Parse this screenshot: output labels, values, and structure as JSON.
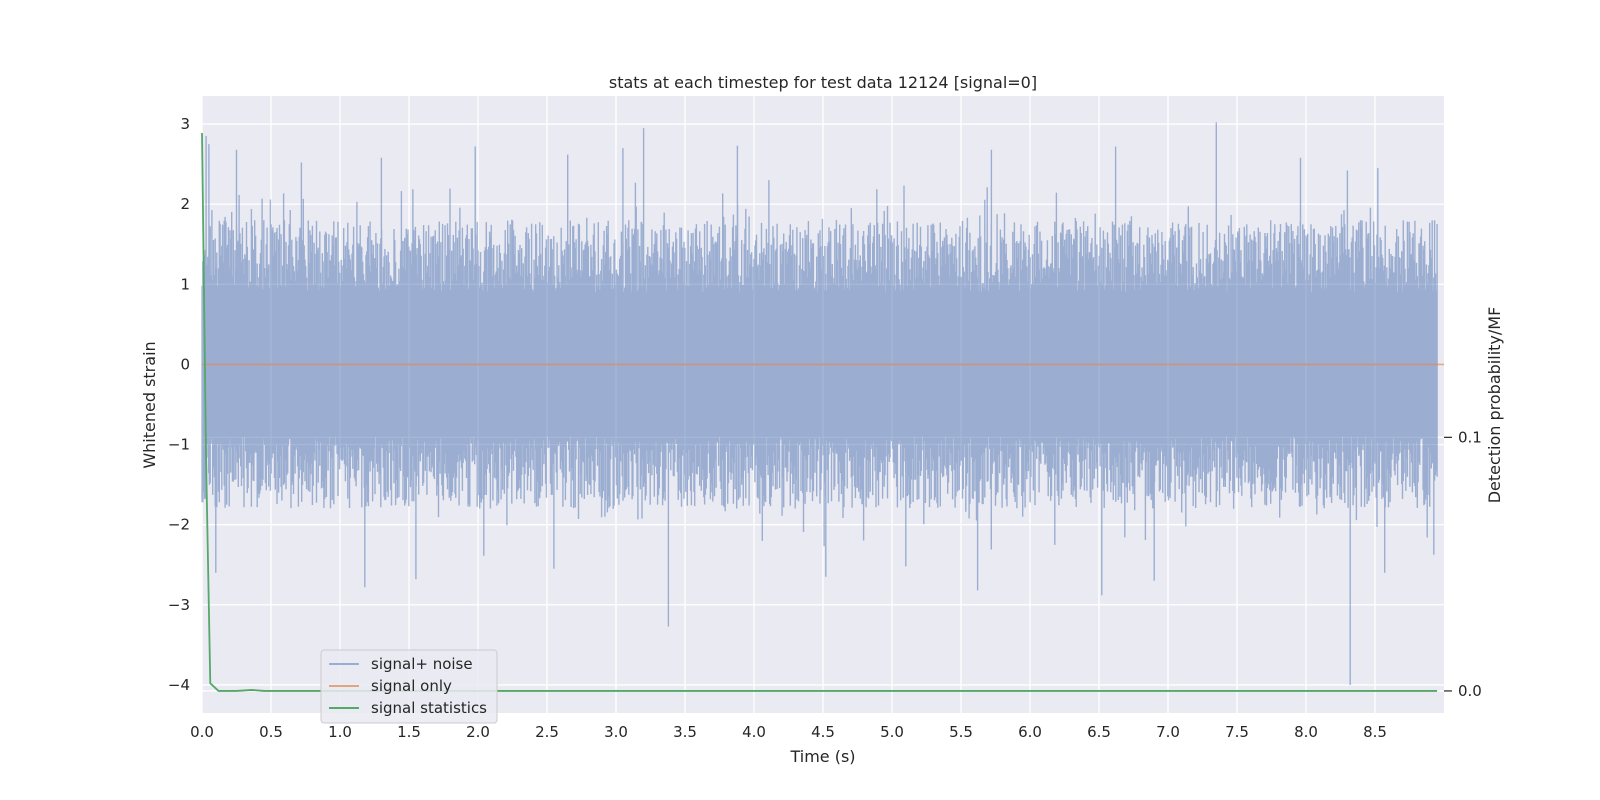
{
  "chart_data": {
    "type": "line",
    "title": "stats at each timestep for test data 12124 [signal=0]",
    "xlabel": "Time (s)",
    "ylabel": "Whitened strain",
    "y2label": "Detection probability/MF",
    "xlim": [
      0.0,
      9.0
    ],
    "ylim": [
      -4.35,
      3.35
    ],
    "y2lim": [
      -0.0087,
      0.2346
    ],
    "x_ticks": [
      0.0,
      0.5,
      1.0,
      1.5,
      2.0,
      2.5,
      3.0,
      3.5,
      4.0,
      4.5,
      5.0,
      5.5,
      6.0,
      6.5,
      7.0,
      7.5,
      8.0,
      8.5
    ],
    "x_tick_labels": [
      "0.0",
      "0.5",
      "1.0",
      "1.5",
      "2.0",
      "2.5",
      "3.0",
      "3.5",
      "4.0",
      "4.5",
      "5.0",
      "5.5",
      "6.0",
      "6.5",
      "7.0",
      "7.5",
      "8.0",
      "8.5"
    ],
    "y_ticks": [
      -4,
      -3,
      -2,
      -1,
      0,
      1,
      2,
      3
    ],
    "y_tick_labels": [
      "−4",
      "−3",
      "−2",
      "−1",
      "0",
      "1",
      "2",
      "3"
    ],
    "y2_ticks": [
      0.0,
      0.1
    ],
    "y2_tick_labels": [
      "0.0",
      "0.1"
    ],
    "grid": true,
    "legend_position": "lower-left",
    "series": [
      {
        "name": "signal+ noise",
        "axis": "left",
        "color": "#4c72b0",
        "style": "dense noise, roughly ±1.5 whitened strain",
        "peaks": {
          "x": [
            0.03,
            0.05,
            0.25,
            0.72,
            1.3,
            1.98,
            2.65,
            3.05,
            3.2,
            3.88,
            5.72,
            6.62,
            7.35,
            7.96,
            8.3,
            8.52
          ],
          "y": [
            2.85,
            2.75,
            2.68,
            2.52,
            2.58,
            2.72,
            2.62,
            2.7,
            2.95,
            2.73,
            2.68,
            2.72,
            3.02,
            2.58,
            2.42,
            2.45
          ]
        },
        "troughs": {
          "x": [
            0.1,
            1.18,
            1.55,
            2.55,
            3.38,
            4.52,
            5.1,
            5.62,
            6.52,
            6.9,
            8.32,
            8.57
          ],
          "y": [
            -2.6,
            -2.78,
            -2.68,
            -2.55,
            -3.27,
            -2.65,
            -2.52,
            -2.82,
            -2.88,
            -2.7,
            -4.0,
            -2.6
          ]
        }
      },
      {
        "name": "signal only",
        "axis": "left",
        "color": "#dd8452",
        "x": [
          0.0,
          9.0
        ],
        "y": [
          0.0,
          0.0
        ]
      },
      {
        "name": "signal statistics",
        "axis": "right",
        "color": "#55a868",
        "x": [
          0.0,
          0.03,
          0.06,
          0.12,
          0.25,
          0.36,
          0.45,
          0.6,
          1.0,
          2.0,
          4.0,
          6.0,
          8.0,
          8.95
        ],
        "y": [
          0.22,
          0.09,
          0.003,
          0.0,
          0.0,
          0.0004,
          0.0,
          0.0,
          0.0,
          0.0,
          0.0,
          0.0,
          0.0,
          0.0
        ]
      }
    ]
  }
}
